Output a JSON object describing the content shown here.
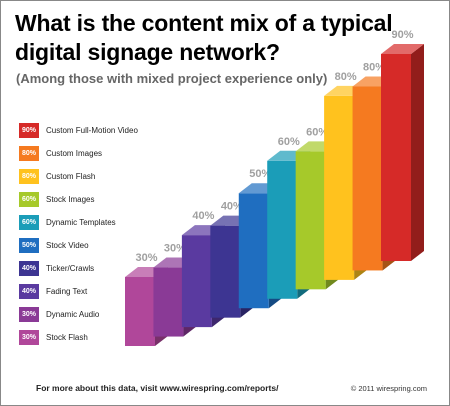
{
  "chart_data": {
    "type": "bar",
    "title": "What is the content mix of a typical digital signage network?",
    "subtitle": "(Among those with mixed project experience only)",
    "categories": [
      "Stock Flash",
      "Dynamic Audio",
      "Fading Text",
      "Ticker/Crawls",
      "Stock Video",
      "Dynamic Templates",
      "Stock Images",
      "Custom Flash",
      "Custom Images",
      "Custom Full-Motion Video"
    ],
    "values": [
      30,
      30,
      40,
      40,
      50,
      60,
      60,
      80,
      80,
      90
    ],
    "value_labels": [
      "30%",
      "30%",
      "40%",
      "40%",
      "50%",
      "60%",
      "60%",
      "80%",
      "80%",
      "90%"
    ],
    "colors": [
      "#b0479a",
      "#8a3a96",
      "#5a3aa0",
      "#3d3592",
      "#1f6ec0",
      "#1b9db8",
      "#a6c92a",
      "#ffc21e",
      "#f57a20",
      "#d62a28"
    ],
    "ylim": [
      0,
      100
    ],
    "grid": false,
    "legend_position": "left"
  },
  "legend": [
    {
      "value": "90%",
      "label": "Custom Full-Motion Video",
      "color": "#d62a28"
    },
    {
      "value": "80%",
      "label": "Custom Images",
      "color": "#f57a20"
    },
    {
      "value": "80%",
      "label": "Custom Flash",
      "color": "#ffc21e"
    },
    {
      "value": "60%",
      "label": "Stock Images",
      "color": "#a6c92a"
    },
    {
      "value": "60%",
      "label": "Dynamic Templates",
      "color": "#1b9db8"
    },
    {
      "value": "50%",
      "label": "Stock Video",
      "color": "#1f6ec0"
    },
    {
      "value": "40%",
      "label": "Ticker/Crawls",
      "color": "#3d3592"
    },
    {
      "value": "40%",
      "label": "Fading Text",
      "color": "#5a3aa0"
    },
    {
      "value": "30%",
      "label": "Dynamic Audio",
      "color": "#8a3a96"
    },
    {
      "value": "30%",
      "label": "Stock Flash",
      "color": "#b0479a"
    }
  ],
  "footer": {
    "text": "For more about this data, visit www.wirespring.com/reports/",
    "copyright": "© 2011 wirespring.com"
  }
}
